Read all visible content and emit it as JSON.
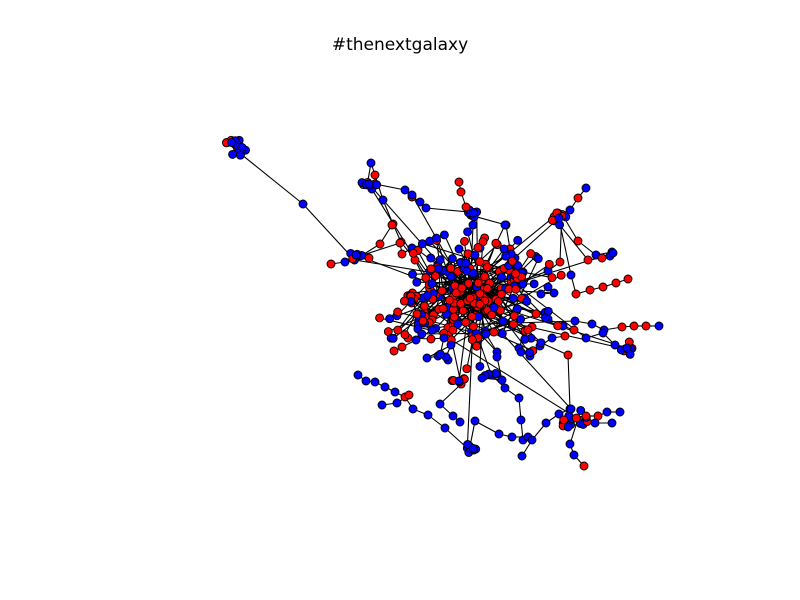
{
  "title": "#thenextgalaxy",
  "colors": {
    "node_group_a": "#0000ff",
    "node_group_b": "#ff0000",
    "edge": "#000000",
    "node_outline": "#000000",
    "background": "#ffffff"
  },
  "legend": "none",
  "axes": "hidden"
}
